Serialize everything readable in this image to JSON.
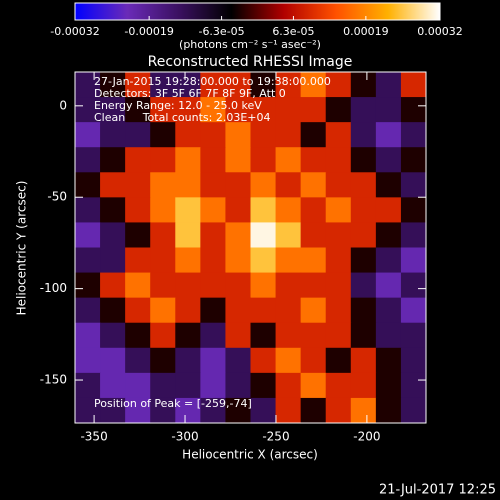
{
  "chart_data": {
    "type": "heatmap",
    "title": "Reconstructed RHESSI Image",
    "x_label": "Heliocentric X (arcsec)",
    "y_label": "Heliocentric Y (arcsec)",
    "colorbar_label": "(photons cm⁻² s⁻¹ asec⁻²)",
    "annotations": [
      "27-Jan-2015 19:28:00.000 to 19:38:00.000",
      "Detectors: 3F 5F 6F 7F 8F 9F, Att 0",
      "Energy Range: 12.0 - 25.0 keV",
      "Clean     Total counts: 2.03E+04"
    ],
    "peak_label": "Position of Peak = [-259,-74]",
    "timestamp": "21-Jul-2017 12:25",
    "xlim": [
      -360.5,
      -167.5
    ],
    "ylim": [
      18.5,
      -173.5
    ],
    "xticks": [
      -350,
      -300,
      -250,
      -200
    ],
    "yticks": [
      0,
      -50,
      -100,
      -150
    ],
    "clim": [
      -0.00032,
      0.00032
    ],
    "cticks": [
      -0.00032,
      -0.00019,
      {
        "value": -6.3e-05,
        "label": "-6.3e-05"
      },
      {
        "value": 6.3e-05,
        "label": "6.3e-05"
      },
      0.00019,
      0.00032
    ],
    "colormap": [
      "#0000ff",
      "#6a2ab8",
      "#3a1060",
      "#000000",
      "#b00000",
      "#ff5000",
      "#ffb000",
      "#ffffff"
    ],
    "z": [
      [
        -0.00013,
        -3e-05,
        9e-05,
        -0.00013,
        -0.00013,
        9e-05,
        9e-05,
        -3e-05,
        9e-05,
        0.00017,
        9e-05,
        -3e-05,
        -0.00013,
        9e-05
      ],
      [
        -0.00013,
        -0.00013,
        -3e-05,
        9e-05,
        9e-05,
        0.00017,
        9e-05,
        9e-05,
        9e-05,
        9e-05,
        -3e-05,
        -0.00013,
        -0.00013,
        -3e-05
      ],
      [
        -0.00022,
        -0.00013,
        -0.00013,
        -3e-05,
        9e-05,
        9e-05,
        0.00017,
        9e-05,
        9e-05,
        -3e-05,
        9e-05,
        -0.00013,
        -0.00022,
        -0.00013
      ],
      [
        -0.00013,
        -3e-05,
        9e-05,
        9e-05,
        0.00017,
        9e-05,
        0.00017,
        9e-05,
        0.00017,
        9e-05,
        9e-05,
        -3e-05,
        -0.00013,
        -3e-05
      ],
      [
        -3e-05,
        9e-05,
        9e-05,
        0.00017,
        0.00017,
        9e-05,
        9e-05,
        0.00017,
        9e-05,
        0.00017,
        9e-05,
        9e-05,
        -3e-05,
        -0.00013
      ],
      [
        -0.00013,
        -3e-05,
        9e-05,
        0.00017,
        0.00025,
        0.00017,
        9e-05,
        0.00025,
        0.00017,
        9e-05,
        0.00017,
        9e-05,
        9e-05,
        -3e-05
      ],
      [
        -0.00022,
        -0.00013,
        -3e-05,
        9e-05,
        0.00025,
        9e-05,
        0.00017,
        0.00031,
        0.00025,
        9e-05,
        9e-05,
        9e-05,
        -3e-05,
        -0.00013
      ],
      [
        -0.00013,
        -0.00013,
        9e-05,
        9e-05,
        0.00017,
        9e-05,
        0.00017,
        0.00025,
        0.00017,
        0.00017,
        9e-05,
        -3e-05,
        -0.00013,
        -0.00022
      ],
      [
        -3e-05,
        9e-05,
        0.00017,
        9e-05,
        9e-05,
        9e-05,
        9e-05,
        0.00017,
        9e-05,
        9e-05,
        9e-05,
        -0.00013,
        -0.00022,
        -0.00013
      ],
      [
        -0.00013,
        -3e-05,
        9e-05,
        0.00017,
        9e-05,
        -3e-05,
        9e-05,
        9e-05,
        9e-05,
        0.00017,
        9e-05,
        -3e-05,
        -0.00013,
        -0.00022
      ],
      [
        -0.00022,
        -0.00013,
        -3e-05,
        9e-05,
        -3e-05,
        -0.00013,
        9e-05,
        -3e-05,
        9e-05,
        9e-05,
        9e-05,
        -3e-05,
        -0.00013,
        -0.00013
      ],
      [
        -0.00022,
        -0.00022,
        -0.00013,
        -3e-05,
        -0.00013,
        -0.00022,
        -0.00013,
        9e-05,
        0.00017,
        9e-05,
        -3e-05,
        9e-05,
        -3e-05,
        -0.00013
      ],
      [
        -0.00013,
        -0.00022,
        -0.00022,
        -0.00013,
        -0.00013,
        -0.00022,
        -0.00013,
        -3e-05,
        9e-05,
        0.00017,
        9e-05,
        9e-05,
        -3e-05,
        -0.00013
      ],
      [
        -0.00013,
        -0.00013,
        -0.00022,
        -0.00013,
        -0.00022,
        -0.00013,
        -3e-05,
        -0.00013,
        9e-05,
        -3e-05,
        9e-05,
        0.00017,
        -3e-05,
        -0.00013
      ]
    ]
  }
}
